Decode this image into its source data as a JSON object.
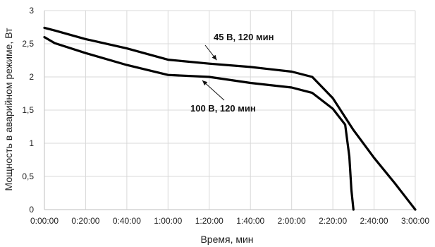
{
  "chart_data": {
    "type": "line",
    "title": "",
    "xlabel": "Время, мин",
    "ylabel": "Мощность в аварийном режиме, Вт",
    "x_tick_labels": [
      "0:00:00",
      "0:20:00",
      "0:40:00",
      "1:00:00",
      "1:20:00",
      "1:40:00",
      "2:00:00",
      "2:20:00",
      "2:40:00",
      "3:00:00"
    ],
    "x_tick_values_min": [
      0,
      20,
      40,
      60,
      80,
      100,
      120,
      140,
      160,
      180
    ],
    "xlim_min": [
      0,
      180
    ],
    "y_tick_labels": [
      "0",
      "0,5",
      "1",
      "1,5",
      "2",
      "2,5",
      "3"
    ],
    "y_tick_values": [
      0,
      0.5,
      1,
      1.5,
      2,
      2.5,
      3
    ],
    "ylim": [
      0,
      3
    ],
    "grid": true,
    "line_color": "#000000",
    "grid_color": "#d9d9d9",
    "series": [
      {
        "name": "45 В, 120 мин",
        "x_min": [
          0,
          5,
          20,
          40,
          60,
          80,
          100,
          120,
          130,
          140,
          150,
          160,
          170,
          175,
          180
        ],
        "y": [
          2.74,
          2.7,
          2.57,
          2.43,
          2.26,
          2.2,
          2.15,
          2.08,
          2.0,
          1.68,
          1.2,
          0.78,
          0.4,
          0.2,
          0.0
        ]
      },
      {
        "name": "100 В, 120 мин",
        "x_min": [
          0,
          5,
          20,
          40,
          60,
          80,
          100,
          120,
          130,
          140,
          146,
          148,
          149,
          150
        ],
        "y": [
          2.6,
          2.51,
          2.36,
          2.18,
          2.03,
          2.0,
          1.91,
          1.84,
          1.76,
          1.52,
          1.28,
          0.8,
          0.3,
          0.0
        ]
      }
    ],
    "annotations": [
      {
        "text": "45 В, 120 мин",
        "series": "45 В, 120 мин",
        "point_x_min": 85,
        "point_y": 2.2
      },
      {
        "text": "100 В, 120 мин",
        "series": "100 В, 120 мин",
        "point_x_min": 78,
        "point_y": 2.0
      }
    ]
  }
}
